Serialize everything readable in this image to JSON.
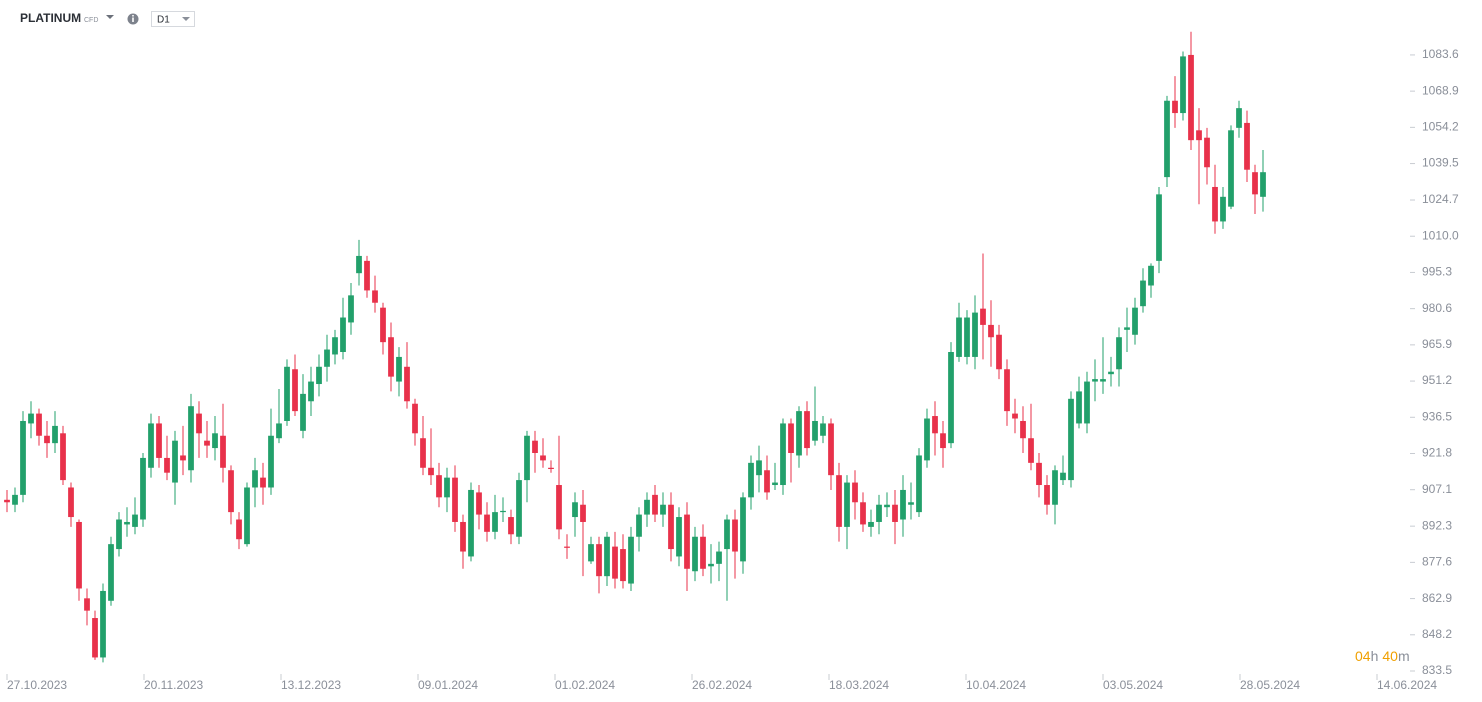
{
  "header": {
    "symbol": "PLATINUM",
    "instrument_type": "CFD",
    "interval": "D1"
  },
  "timer": {
    "hours": "04",
    "hours_unit": "h",
    "minutes": "40",
    "minutes_unit": "m"
  },
  "chart_data": {
    "type": "candlestick",
    "up_color": "#22a06b",
    "down_color": "#e8314a",
    "ylim": [
      833.5,
      1105.9
    ],
    "yticks": [
      833.5,
      848.2,
      862.9,
      877.6,
      892.3,
      907.1,
      921.8,
      936.5,
      951.2,
      965.9,
      980.6,
      995.3,
      {
        "value": 1010,
        "label": "1010.0"
      },
      1024.7,
      1039.5,
      1054.2,
      1068.9,
      1083.6
    ],
    "xlim": [
      -0.875,
      175.375
    ],
    "xticks": [
      {
        "value": 0,
        "label": "27.10.2023"
      },
      {
        "value": 17.125,
        "label": "20.11.2023"
      },
      {
        "value": 34.25,
        "label": "13.12.2023"
      },
      {
        "value": 51.375,
        "label": "09.01.2024"
      },
      {
        "value": 68.5,
        "label": "01.02.2024"
      },
      {
        "value": 85.625,
        "label": "26.02.2024"
      },
      {
        "value": 102.75,
        "label": "18.03.2024"
      },
      {
        "value": 119.875,
        "label": "10.04.2024"
      },
      {
        "value": 137,
        "label": "03.05.2024"
      },
      {
        "value": 154.125,
        "label": "28.05.2024"
      },
      {
        "value": 171.25,
        "label": "14.06.2024"
      }
    ],
    "open": [
      903,
      901,
      905,
      934,
      938,
      929,
      926,
      930,
      908,
      894,
      863,
      855,
      839,
      862,
      883,
      893,
      892,
      895,
      916,
      934,
      920,
      910,
      921,
      915,
      938,
      927,
      924,
      929,
      915,
      895,
      885,
      908,
      912,
      908,
      928,
      935,
      956,
      931,
      943,
      950,
      957,
      962,
      963,
      975,
      995,
      1000,
      988,
      981,
      969,
      951,
      957,
      942,
      928,
      916,
      913,
      904,
      912,
      894,
      880,
      906,
      897,
      890,
      898,
      896,
      888,
      911,
      927,
      921,
      916,
      909,
      884,
      896,
      901,
      878,
      885,
      872,
      884,
      883,
      869,
      888,
      897,
      905,
      897,
      901,
      880,
      897,
      874,
      888,
      876,
      877,
      883,
      895,
      878,
      904,
      913,
      915,
      909,
      909,
      934,
      921,
      939,
      927,
      929,
      934,
      913,
      892,
      910,
      902,
      892,
      894,
      900,
      901,
      895,
      901,
      898,
      919,
      937,
      930,
      926,
      961,
      961,
      961,
      980.6,
      974,
      970,
      956,
      938,
      935,
      928,
      918,
      909,
      901,
      911,
      911,
      934,
      934,
      951,
      951,
      954,
      956,
      972,
      970,
      981.6,
      990,
      1000,
      1034,
      1065,
      1060,
      1083.6,
      1053,
      1050,
      1030,
      1016,
      1022,
      1054,
      1056,
      1036,
      1026
    ],
    "high": [
      907,
      908,
      939,
      943,
      940,
      935,
      939,
      933,
      910,
      895,
      867,
      858,
      869,
      888,
      898,
      900,
      904,
      922,
      938,
      937,
      929,
      931,
      933,
      946,
      943,
      935,
      937,
      942,
      917,
      898,
      910,
      920,
      918,
      940,
      948,
      960,
      962,
      954,
      957,
      962,
      970,
      972,
      985,
      991,
      1008.5,
      1002,
      994,
      983,
      975,
      965,
      967,
      944,
      937,
      932,
      918,
      916,
      917,
      897,
      910,
      909,
      902,
      905,
      904,
      899,
      914,
      931,
      931,
      928,
      919,
      929,
      889,
      906,
      907,
      888,
      888,
      890,
      890,
      889,
      892,
      900,
      906,
      909,
      906,
      906,
      900,
      902,
      892,
      893,
      885,
      886,
      897,
      899,
      906,
      921,
      925,
      921,
      918,
      936,
      936,
      941,
      943,
      949,
      937,
      936,
      918,
      913,
      915,
      906,
      899,
      905,
      906,
      907,
      913,
      910,
      924,
      940,
      943,
      935,
      967,
      983,
      980,
      986,
      1003,
      984,
      974,
      960,
      944,
      941,
      942,
      922,
      913,
      917,
      921,
      947,
      953,
      955,
      960,
      969,
      961,
      973,
      981,
      985,
      997,
      999,
      1030,
      1067,
      1075,
      1085,
      1093,
      1062,
      1054,
      1039,
      1030,
      1055,
      1065,
      1061,
      1039,
      1045
    ],
    "low": [
      898,
      898,
      902,
      928,
      925,
      920,
      922,
      909,
      892,
      862,
      852,
      838,
      837,
      860,
      880,
      888,
      889,
      892,
      912,
      916,
      911,
      901,
      913,
      910,
      920,
      920,
      919,
      910,
      893,
      883,
      884,
      900,
      901,
      905,
      926,
      933,
      937,
      928,
      937,
      945,
      951,
      958,
      960,
      970,
      990,
      985,
      979,
      962,
      947,
      945,
      940,
      925,
      913,
      909,
      900,
      898,
      890,
      875,
      878,
      891,
      886,
      887,
      894,
      885,
      885,
      902,
      914,
      916,
      914,
      887,
      879,
      888,
      872,
      877,
      865,
      868,
      867,
      867,
      866,
      882,
      892,
      894,
      892,
      878,
      876,
      866,
      870,
      872,
      869,
      870,
      862,
      871,
      873,
      899,
      906,
      903,
      907,
      905,
      910,
      916,
      921,
      925,
      926,
      907,
      886,
      883,
      895,
      890,
      888,
      889,
      896,
      885,
      888,
      895,
      896,
      916,
      921,
      916,
      924,
      959,
      958,
      956,
      960,
      957,
      952,
      933,
      930,
      922,
      915,
      904,
      897,
      893,
      909,
      908,
      932,
      930,
      943,
      946,
      949,
      949,
      963,
      966,
      979,
      985,
      995,
      1030,
      1054,
      1057,
      1045,
      1023,
      1031,
      1011,
      1013,
      1021,
      1050,
      1032,
      1019,
      1020
    ],
    "close": [
      902,
      905,
      935,
      938,
      929,
      926,
      933,
      911,
      896,
      867,
      858,
      839,
      866,
      885,
      895,
      894,
      897,
      920,
      934,
      920,
      914,
      927,
      919,
      941,
      930,
      925,
      930,
      916,
      898,
      887,
      908,
      915,
      908,
      929,
      934,
      957,
      939,
      946,
      951,
      957,
      964,
      969,
      977,
      986,
      1002,
      988,
      983,
      967,
      953,
      961,
      943,
      930,
      916,
      913,
      904,
      912,
      894,
      882,
      907,
      897,
      890,
      898,
      898.5,
      889,
      911,
      929,
      922,
      919,
      915.5,
      891,
      883.5,
      902,
      894,
      885,
      872,
      888,
      871,
      870,
      888,
      897,
      903,
      897,
      901,
      883,
      896,
      875,
      888,
      875,
      877,
      882,
      895,
      882,
      904,
      918,
      919,
      906,
      910,
      934,
      922,
      939,
      924,
      935,
      934,
      913,
      892,
      910,
      902,
      893,
      894,
      901,
      901,
      894,
      907,
      902,
      921,
      936,
      930,
      924,
      963,
      977,
      977,
      979,
      974,
      969,
      956,
      939,
      936,
      928,
      918,
      909,
      901,
      915,
      914,
      944,
      947,
      951,
      952,
      952,
      955,
      969,
      973,
      981,
      992,
      998,
      1027,
      1065,
      1060,
      1083,
      1049,
      1049,
      1038,
      1016,
      1026,
      1053,
      1062,
      1037,
      1027,
      1036
    ]
  }
}
